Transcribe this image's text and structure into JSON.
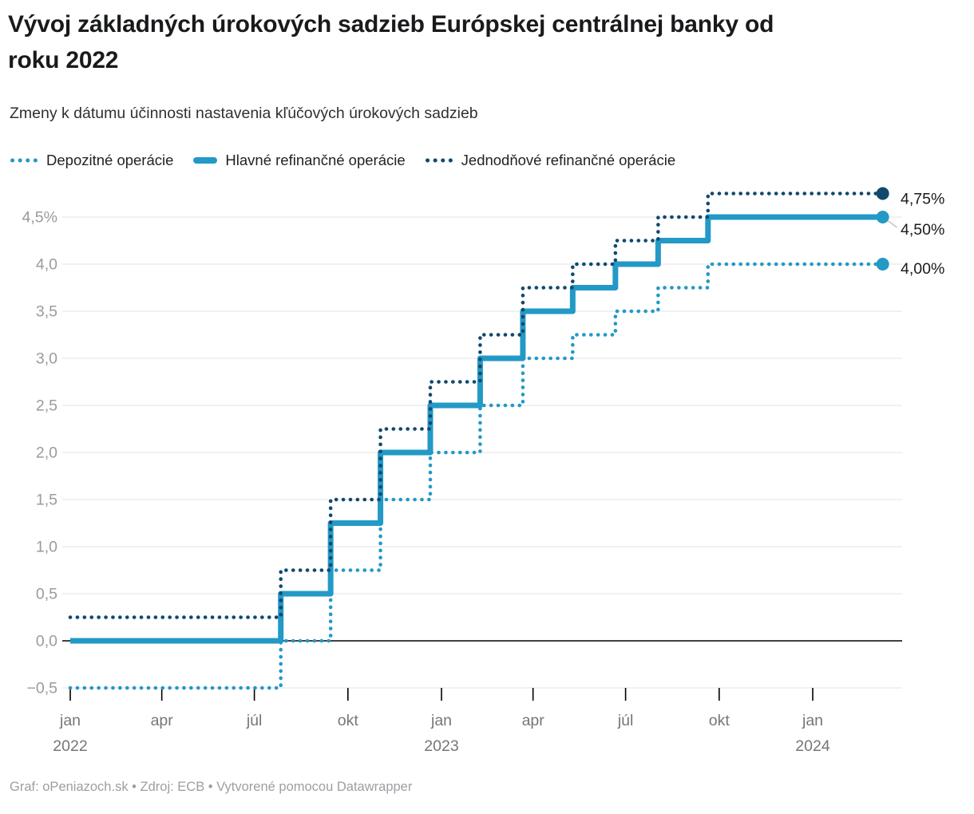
{
  "header": {
    "title": "Vývoj základných úrokových sadzieb Európskej centrálnej banky od roku 2022",
    "subtitle": "Zmeny k dátumu účinnosti nastavenia kľúčových úrokových sadzieb"
  },
  "legend": [
    {
      "label": "Depozitné operácie",
      "style": "dotted",
      "color": "#2399c6"
    },
    {
      "label": "Hlavné refinančné operácie",
      "style": "solid",
      "color": "#2399c6"
    },
    {
      "label": "Jednodňové refinančné operácie",
      "style": "dotted",
      "color": "#11496d"
    }
  ],
  "chart_data": {
    "type": "line",
    "step": true,
    "x_type": "date",
    "x_range": [
      "2022-01-01",
      "2024-03-10"
    ],
    "ylim": [
      -0.5,
      4.75
    ],
    "grid": true,
    "colors": {
      "light_blue": "#2399c6",
      "dark_blue": "#11496d"
    },
    "series": [
      {
        "name": "Depozitné operácie",
        "color": "#2399c6",
        "dash": "dotted",
        "end_label": "4,00%",
        "points": [
          [
            "2022-01-01",
            -0.5
          ],
          [
            "2022-07-27",
            0.0
          ],
          [
            "2022-09-14",
            0.75
          ],
          [
            "2022-11-02",
            1.5
          ],
          [
            "2022-12-21",
            2.0
          ],
          [
            "2023-02-08",
            2.5
          ],
          [
            "2023-03-22",
            3.0
          ],
          [
            "2023-05-10",
            3.25
          ],
          [
            "2023-06-21",
            3.5
          ],
          [
            "2023-08-02",
            3.75
          ],
          [
            "2023-09-20",
            4.0
          ]
        ]
      },
      {
        "name": "Hlavné refinančné operácie",
        "color": "#2399c6",
        "dash": "solid",
        "end_label": "4,50%",
        "points": [
          [
            "2022-01-01",
            0.0
          ],
          [
            "2022-07-27",
            0.5
          ],
          [
            "2022-09-14",
            1.25
          ],
          [
            "2022-11-02",
            2.0
          ],
          [
            "2022-12-21",
            2.5
          ],
          [
            "2023-02-08",
            3.0
          ],
          [
            "2023-03-22",
            3.5
          ],
          [
            "2023-05-10",
            3.75
          ],
          [
            "2023-06-21",
            4.0
          ],
          [
            "2023-08-02",
            4.25
          ],
          [
            "2023-09-20",
            4.5
          ]
        ]
      },
      {
        "name": "Jednodňové refinančné operácie",
        "color": "#11496d",
        "dash": "dotted",
        "end_label": "4,75%",
        "points": [
          [
            "2022-01-01",
            0.25
          ],
          [
            "2022-07-27",
            0.75
          ],
          [
            "2022-09-14",
            1.5
          ],
          [
            "2022-11-02",
            2.25
          ],
          [
            "2022-12-21",
            2.75
          ],
          [
            "2023-02-08",
            3.25
          ],
          [
            "2023-03-22",
            3.75
          ],
          [
            "2023-05-10",
            4.0
          ],
          [
            "2023-06-21",
            4.25
          ],
          [
            "2023-08-02",
            4.5
          ],
          [
            "2023-09-20",
            4.75
          ]
        ]
      }
    ],
    "y_ticks": [
      {
        "v": -0.5,
        "label": "−0,5"
      },
      {
        "v": 0.0,
        "label": "0,0"
      },
      {
        "v": 0.5,
        "label": "0,5"
      },
      {
        "v": 1.0,
        "label": "1,0"
      },
      {
        "v": 1.5,
        "label": "1,5"
      },
      {
        "v": 2.0,
        "label": "2,0"
      },
      {
        "v": 2.5,
        "label": "2,5"
      },
      {
        "v": 3.0,
        "label": "3,0"
      },
      {
        "v": 3.5,
        "label": "3,5"
      },
      {
        "v": 4.0,
        "label": "4,0"
      },
      {
        "v": 4.5,
        "label": "4,5%"
      }
    ],
    "x_ticks": [
      {
        "date": "2022-01-01",
        "label": "jan",
        "year": "2022"
      },
      {
        "date": "2022-04-01",
        "label": "apr"
      },
      {
        "date": "2022-07-01",
        "label": "júl"
      },
      {
        "date": "2022-10-01",
        "label": "okt"
      },
      {
        "date": "2023-01-01",
        "label": "jan",
        "year": "2023"
      },
      {
        "date": "2023-04-01",
        "label": "apr"
      },
      {
        "date": "2023-07-01",
        "label": "júl"
      },
      {
        "date": "2023-10-01",
        "label": "okt"
      },
      {
        "date": "2024-01-01",
        "label": "jan",
        "year": "2024"
      }
    ]
  },
  "footer": {
    "text": "Graf: oPeniazoch.sk • Zdroj: ECB • Vytvorené pomocou Datawrapper"
  }
}
